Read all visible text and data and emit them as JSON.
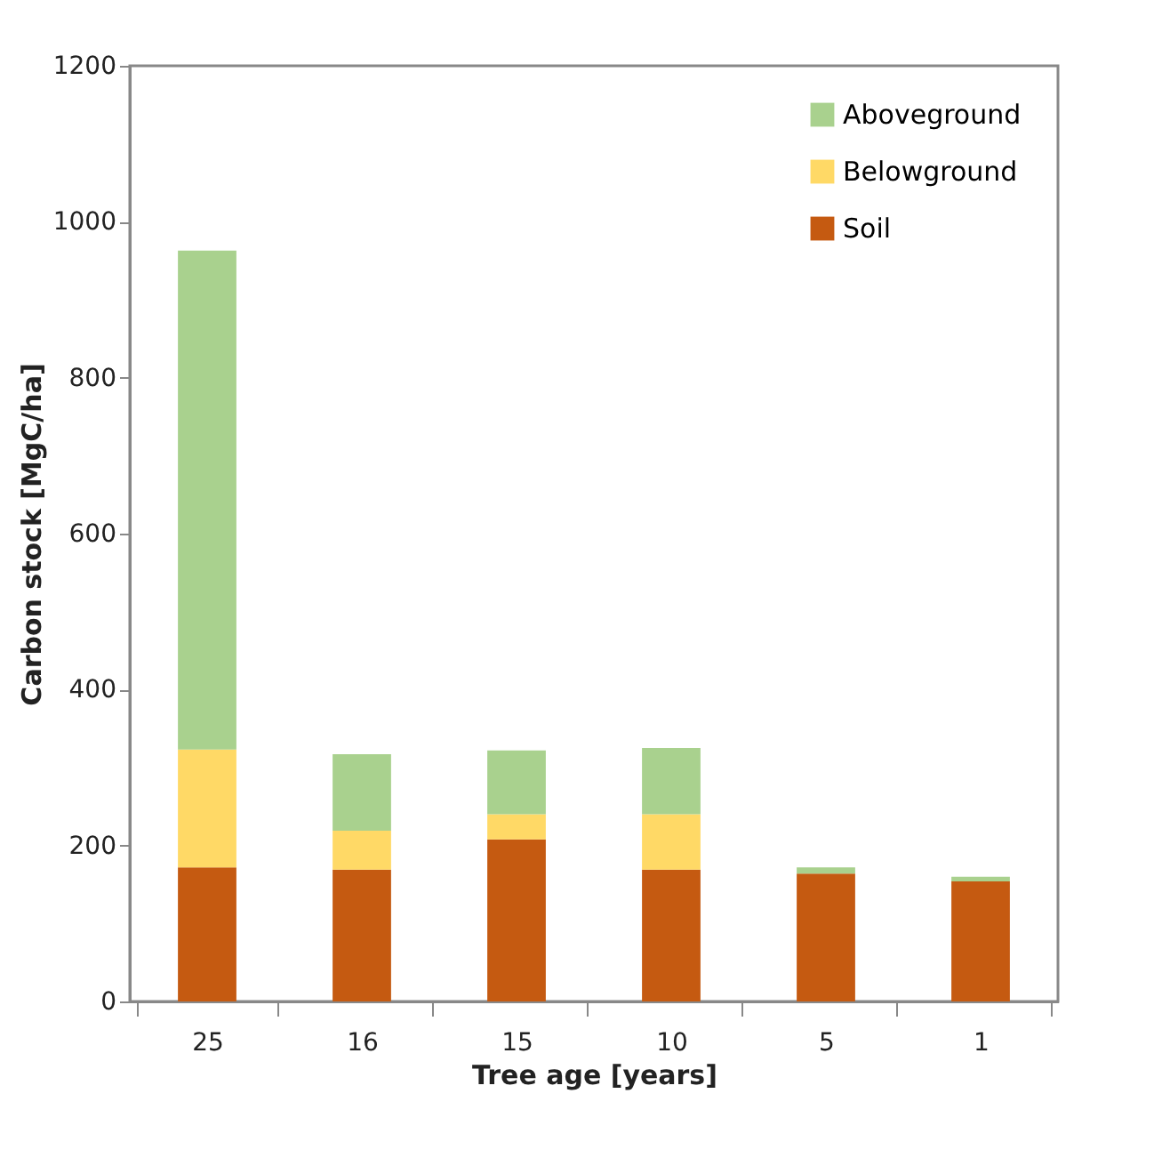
{
  "chart_data": {
    "type": "bar",
    "stacked": true,
    "xlabel": "Tree age [years]",
    "ylabel": "Carbon stock [MgC/ha]",
    "categories": [
      "25",
      "16",
      "15",
      "10",
      "5",
      "1"
    ],
    "series": [
      {
        "name": "Soil",
        "color": "#c55a11",
        "values": [
          172,
          169,
          208,
          169,
          164,
          154
        ]
      },
      {
        "name": "Belowground",
        "color": "#ffd966",
        "values": [
          151,
          50,
          32,
          71,
          0,
          0
        ]
      },
      {
        "name": "Aboveground",
        "color": "#a9d18e",
        "values": [
          640,
          98,
          82,
          85,
          8,
          6
        ]
      }
    ],
    "ylim": [
      0,
      1200
    ],
    "yticks": [
      0,
      200,
      400,
      600,
      800,
      1000,
      1200
    ],
    "grid": false,
    "legend": "top right"
  }
}
